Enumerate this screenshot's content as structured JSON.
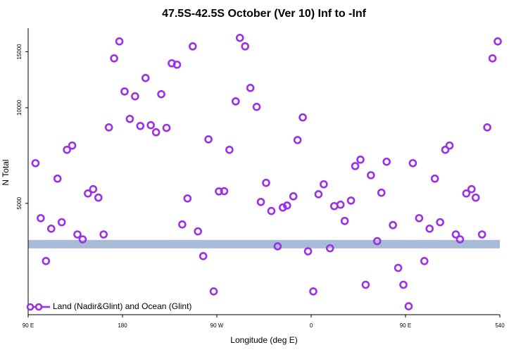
{
  "chart_data": {
    "type": "scatter",
    "title": "47.5S-42.5S October (Ver 10)   Inf to -Inf",
    "xlabel": "Longitude (deg E)",
    "ylabel": "N Total",
    "xlim": [
      90,
      540
    ],
    "xticks": [
      {
        "value": 90,
        "label": "90 E"
      },
      180,
      {
        "value": 270,
        "label": "90 W"
      },
      {
        "value": 360,
        "label": "0"
      },
      {
        "value": 450,
        "label": "90 E"
      },
      540
    ],
    "ylim": [
      2230,
      17800
    ],
    "yticks": [
      5000,
      10000,
      15000
    ],
    "log_y": true,
    "legend": "bottom-left",
    "band": {
      "ylim": [
        3606,
        3834
      ],
      "color": "#a8bcd8"
    },
    "series": [
      {
        "name": "Land (Nadir&Glint) and Ocean (Glint)",
        "color": "#9b30e6",
        "x": [
          97,
          102,
          107,
          112,
          118,
          122,
          127,
          132,
          137,
          142,
          147,
          152,
          157,
          162,
          167,
          172,
          177,
          182,
          187,
          192,
          197,
          202,
          207,
          212,
          217,
          222,
          227,
          232,
          237,
          242,
          247,
          252,
          257,
          262,
          267,
          272,
          277,
          282,
          288,
          292,
          297,
          302,
          308,
          312,
          317,
          322,
          328,
          333,
          337,
          343,
          347,
          352,
          357,
          362,
          367,
          372,
          378,
          382,
          388,
          392,
          398,
          402,
          407,
          412,
          417,
          423,
          427,
          432,
          438,
          443,
          448,
          453,
          457,
          463,
          468,
          473,
          478,
          483,
          488,
          492,
          498,
          502,
          508,
          513,
          517,
          523,
          528,
          533,
          538
        ],
        "values": [
          6690,
          4490,
          3290,
          4160,
          5980,
          4360,
          7370,
          7600,
          3990,
          3850,
          5370,
          5540,
          5210,
          3990,
          8670,
          14300,
          16170,
          11250,
          9220,
          10860,
          8760,
          12400,
          8810,
          8370,
          11030,
          8640,
          13800,
          13660,
          4290,
          5180,
          15600,
          4080,
          3410,
          7950,
          2640,
          5450,
          5460,
          7370,
          10470,
          16590,
          15600,
          11540,
          10060,
          5050,
          5800,
          4730,
          3660,
          4850,
          4920,
          5260,
          7910,
          9320,
          3530,
          2640,
          5340,
          5740,
          3610,
          4900,
          4950,
          4400,
          5100,
          6550,
          6860,
          2770,
          6130,
          3800,
          5400,
          6760,
          4270,
          3130,
          2770,
          2370,
          6690,
          4490,
          3290,
          4160,
          5980,
          4360,
          7370,
          7600,
          3990,
          3850,
          5370,
          5540,
          5210,
          3990,
          8670,
          14300,
          16170
        ]
      }
    ]
  }
}
